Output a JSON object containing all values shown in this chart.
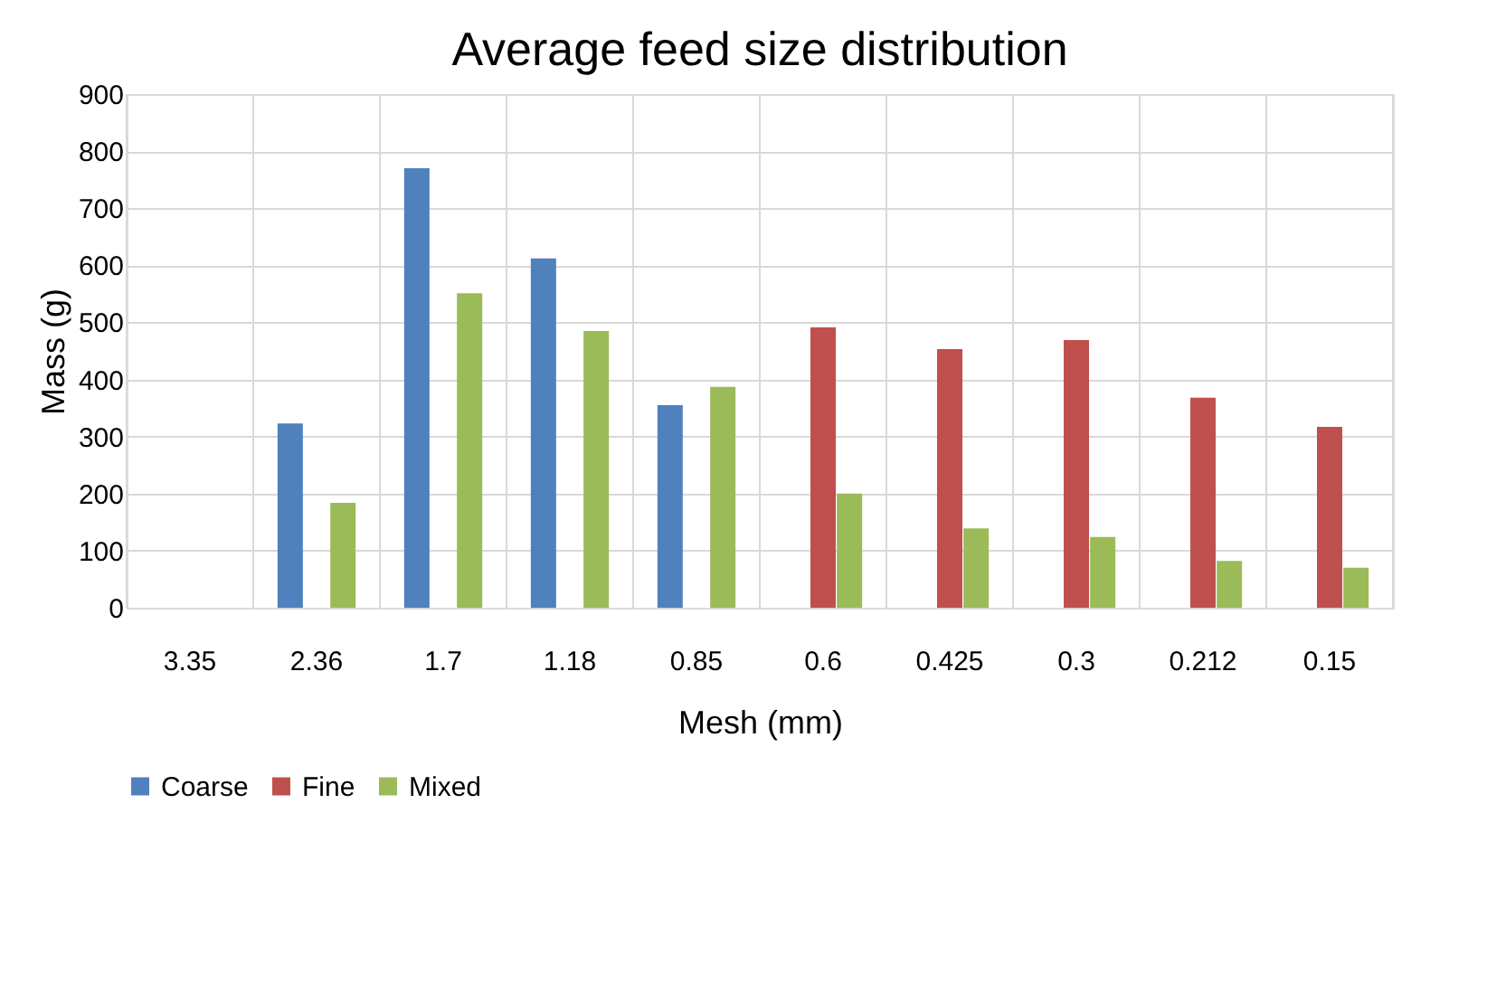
{
  "chart_data": {
    "type": "bar",
    "title": "Average feed size distribution",
    "xlabel": "Mesh (mm)",
    "ylabel": "Mass (g)",
    "categories": [
      "3.35",
      "2.36",
      "1.7",
      "1.18",
      "0.85",
      "0.6",
      "0.425",
      "0.3",
      "0.212",
      "0.15"
    ],
    "series": [
      {
        "name": "Coarse",
        "color": "#4f81bd",
        "values": [
          null,
          323,
          770,
          612,
          355,
          null,
          null,
          null,
          null,
          null
        ]
      },
      {
        "name": "Fine",
        "color": "#c0504d",
        "values": [
          null,
          null,
          null,
          null,
          null,
          491,
          453,
          469,
          368,
          317
        ]
      },
      {
        "name": "Mixed",
        "color": "#9bbb59",
        "values": [
          null,
          184,
          551,
          485,
          387,
          200,
          139,
          124,
          82,
          70
        ]
      }
    ],
    "ylim": [
      0,
      900
    ],
    "yticks": [
      0,
      100,
      200,
      300,
      400,
      500,
      600,
      700,
      800,
      900
    ],
    "grid": true,
    "legend": "bottom"
  }
}
